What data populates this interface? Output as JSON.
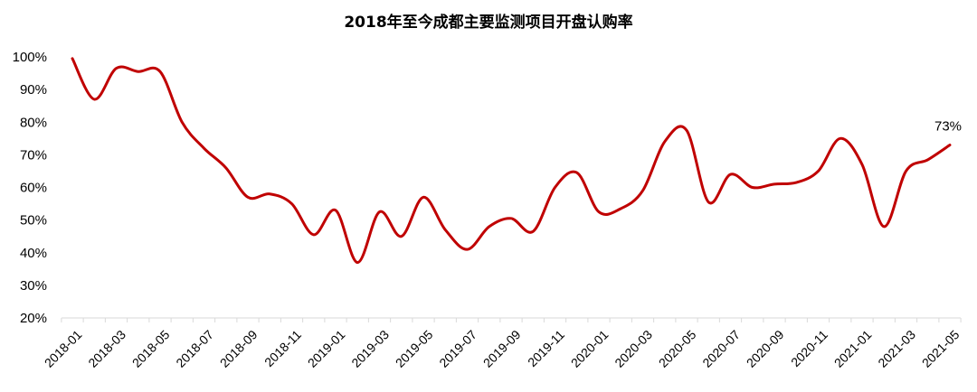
{
  "chart_data": {
    "type": "line",
    "title": "2018年至今成都主要监测项目开盘认购率",
    "xlabel": "",
    "ylabel": "",
    "ylim": [
      20,
      100
    ],
    "yticks": [
      "20%",
      "30%",
      "40%",
      "50%",
      "60%",
      "70%",
      "80%",
      "90%",
      "100%"
    ],
    "grid": false,
    "legend": "none",
    "line_color": "#c00000",
    "x": [
      "2018-01",
      "2018-02",
      "2018-03",
      "2018-04",
      "2018-05",
      "2018-06",
      "2018-07",
      "2018-08",
      "2018-09",
      "2018-10",
      "2018-11",
      "2018-12",
      "2019-01",
      "2019-02",
      "2019-03",
      "2019-04",
      "2019-05",
      "2019-06",
      "2019-07",
      "2019-08",
      "2019-09",
      "2019-10",
      "2019-11",
      "2019-12",
      "2020-01",
      "2020-02",
      "2020-03",
      "2020-04",
      "2020-05",
      "2020-06",
      "2020-07",
      "2020-08",
      "2020-09",
      "2020-10",
      "2020-11",
      "2020-12",
      "2021-01",
      "2021-02",
      "2021-03",
      "2021-04",
      "2021-05"
    ],
    "xtick_labels": [
      "2018-01",
      "2018-03",
      "2018-05",
      "2018-07",
      "2018-09",
      "2018-11",
      "2019-01",
      "2019-03",
      "2019-05",
      "2019-07",
      "2019-09",
      "2019-11",
      "2020-01",
      "2020-03",
      "2020-05",
      "2020-07",
      "2020-09",
      "2020-11",
      "2021-01",
      "2021-03",
      "2021-05"
    ],
    "series": [
      {
        "values": [
          99.5,
          87,
          96.5,
          95.5,
          95.5,
          80,
          72,
          66,
          57,
          58,
          55,
          45.5,
          53,
          37,
          52.5,
          45,
          57,
          47,
          41,
          48,
          50.5,
          46.5,
          60,
          64.5,
          52.5,
          53.5,
          59,
          74,
          77.5,
          55.5,
          64,
          60,
          61,
          61.5,
          65,
          75,
          67,
          48,
          65,
          68.5,
          73
        ]
      }
    ],
    "annotations": [
      {
        "label": "73%"
      }
    ]
  }
}
